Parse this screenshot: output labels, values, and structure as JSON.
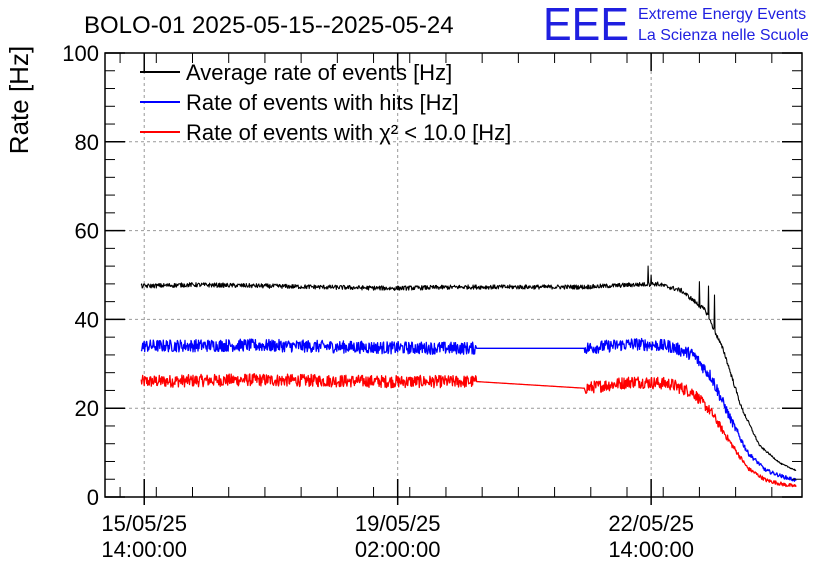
{
  "chart_data": {
    "type": "line",
    "title": "BOLO-01 2025-05-15--2025-05-24",
    "ylabel": "Rate [Hz]",
    "xlabel": "",
    "ylim": [
      0,
      100
    ],
    "yticks": [
      0,
      20,
      40,
      60,
      80,
      100
    ],
    "xlim": [
      "2025-05-15T01:00:00",
      "2025-05-24T16:00:00"
    ],
    "xticks": [
      {
        "at": "2025-05-15T14:00:00",
        "date": "15/05/25",
        "time": "14:00:00"
      },
      {
        "at": "2025-05-19T02:00:00",
        "date": "19/05/25",
        "time": "02:00:00"
      },
      {
        "at": "2025-05-22T14:00:00",
        "date": "22/05/25",
        "time": "14:00:00"
      }
    ],
    "grid": true,
    "legend_position": "top-left",
    "series": [
      {
        "name": "Average rate of events [Hz]",
        "color": "#000000",
        "noise": 0.5,
        "points": [
          [
            "2025-05-15T13:00:00",
            47.5
          ],
          [
            "2025-05-16T06:00:00",
            47.8
          ],
          [
            "2025-05-17T00:00:00",
            47.6
          ],
          [
            "2025-05-18T00:00:00",
            47.3
          ],
          [
            "2025-05-19T00:00:00",
            47.0
          ],
          [
            "2025-05-20T00:00:00",
            47.3
          ],
          [
            "2025-05-20T04:00:00",
            47.3
          ],
          [
            "2025-05-21T16:00:00",
            47.3
          ],
          [
            "2025-05-22T08:00:00",
            47.8
          ],
          [
            "2025-05-22T16:00:00",
            48.0
          ],
          [
            "2025-05-23T00:00:00",
            46.5
          ],
          [
            "2025-05-23T08:00:00",
            42.0
          ],
          [
            "2025-05-23T14:00:00",
            33.0
          ],
          [
            "2025-05-23T20:00:00",
            20.0
          ],
          [
            "2025-05-24T02:00:00",
            11.5
          ],
          [
            "2025-05-24T09:00:00",
            7.5
          ],
          [
            "2025-05-24T14:00:00",
            6.0
          ]
        ],
        "spikes": [
          [
            "2025-05-22T13:00:00",
            52.0
          ],
          [
            "2025-05-22T14:00:00",
            50.0
          ],
          [
            "2025-05-23T06:00:00",
            48.5
          ],
          [
            "2025-05-23T09:00:00",
            47.5
          ],
          [
            "2025-05-23T11:00:00",
            45.5
          ]
        ]
      },
      {
        "name": "Rate of events with hits [Hz]",
        "color": "#0000ff",
        "noise": 1.4,
        "points": [
          [
            "2025-05-15T13:00:00",
            34.0
          ],
          [
            "2025-05-17T00:00:00",
            34.2
          ],
          [
            "2025-05-19T00:00:00",
            33.6
          ],
          [
            "2025-05-20T04:00:00",
            33.5
          ],
          [
            "2025-05-21T16:00:00",
            33.5
          ],
          [
            "2025-05-22T08:00:00",
            34.5
          ],
          [
            "2025-05-22T20:00:00",
            34.0
          ],
          [
            "2025-05-23T04:00:00",
            32.0
          ],
          [
            "2025-05-23T10:00:00",
            27.0
          ],
          [
            "2025-05-23T16:00:00",
            18.0
          ],
          [
            "2025-05-23T22:00:00",
            10.0
          ],
          [
            "2025-05-24T04:00:00",
            6.0
          ],
          [
            "2025-05-24T10:00:00",
            4.5
          ],
          [
            "2025-05-24T14:00:00",
            3.8
          ]
        ],
        "gaps": [
          [
            "2025-05-20T04:00:00",
            "2025-05-21T16:00:00"
          ]
        ]
      },
      {
        "name": "Rate of events with χ² < 10.0 [Hz]",
        "color": "#ff0000",
        "noise": 1.4,
        "points": [
          [
            "2025-05-15T13:00:00",
            26.0
          ],
          [
            "2025-05-17T00:00:00",
            26.4
          ],
          [
            "2025-05-19T00:00:00",
            26.0
          ],
          [
            "2025-05-20T04:00:00",
            26.0
          ],
          [
            "2025-05-21T16:00:00",
            24.5
          ],
          [
            "2025-05-22T08:00:00",
            26.0
          ],
          [
            "2025-05-22T20:00:00",
            25.5
          ],
          [
            "2025-05-23T04:00:00",
            23.5
          ],
          [
            "2025-05-23T10:00:00",
            19.0
          ],
          [
            "2025-05-23T16:00:00",
            12.5
          ],
          [
            "2025-05-23T22:00:00",
            6.5
          ],
          [
            "2025-05-24T04:00:00",
            3.8
          ],
          [
            "2025-05-24T10:00:00",
            2.8
          ],
          [
            "2025-05-24T14:00:00",
            2.4
          ]
        ],
        "gaps": [
          [
            "2025-05-20T04:00:00",
            "2025-05-21T16:00:00"
          ]
        ]
      }
    ]
  },
  "logo": {
    "mark": "EEE",
    "line1": "Extreme Energy Events",
    "line2": "La Scienza nelle Scuole",
    "color": "#1f1fe0"
  }
}
